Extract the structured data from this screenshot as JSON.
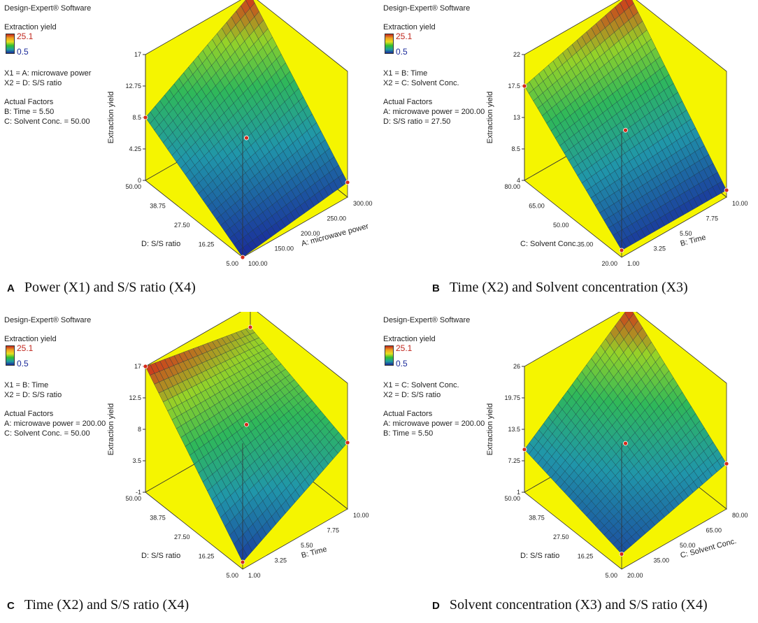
{
  "software_label": "Design-Expert® Software",
  "legend": {
    "title": "Extraction yield",
    "max": "25.1",
    "min": "0.5",
    "max_color": "#c0261d",
    "min_color": "#1a2a9a"
  },
  "colors": {
    "wall": "#f5f500",
    "surface_low": "#1a2a9a",
    "surface_mid": "#2fb86a",
    "surface_high": "#d42a1a"
  },
  "chart_data": [
    {
      "panel": "A",
      "type": "surface",
      "caption_letter": "A",
      "caption": "Power (X1) and S/S ratio (X4)",
      "x1": "X1 = A: microwave power",
      "x2": "X2 = D: S/S ratio",
      "actual_title": "Actual Factors",
      "actual": [
        "B: Time  = 5.50",
        "C: Solvent Conc. = 50.00"
      ],
      "zlabel": "Extraction yield",
      "zticks": [
        "17",
        "12.75",
        "8.5",
        "4.25",
        "0"
      ],
      "zlim": [
        0,
        17
      ],
      "xlabel": "A: microwave power",
      "xticks": [
        "100.00",
        "150.00",
        "200.00",
        "250.00",
        "300.00"
      ],
      "ylabel": "D: S/S ratio",
      "yticks": [
        "5.00",
        "16.25",
        "27.50",
        "38.75",
        "50.00"
      ],
      "corners": {
        "x_lo_y_lo": 0.0,
        "x_hi_y_lo": 2.0,
        "x_lo_y_hi": 8.5,
        "x_hi_y_hi": 17.0
      }
    },
    {
      "panel": "B",
      "type": "surface",
      "caption_letter": "B",
      "caption": "Time (X2) and Solvent concentration (X3)",
      "x1": "X1 = B: Time",
      "x2": "X2 = C: Solvent Conc.",
      "actual_title": "Actual Factors",
      "actual": [
        "A: microwave power = 200.00",
        "D: S/S ratio = 27.50"
      ],
      "zlabel": "Extraction yield",
      "zticks": [
        "22",
        "17.5",
        "13",
        "8.5",
        "4"
      ],
      "zlim": [
        4,
        22
      ],
      "xlabel": "B: Time",
      "xticks": [
        "1.00",
        "3.25",
        "5.50",
        "7.75",
        "10.00"
      ],
      "ylabel": "C: Solvent Conc.",
      "yticks": [
        "20.00",
        "35.00",
        "50.00",
        "65.00",
        "80.00"
      ],
      "corners": {
        "x_lo_y_lo": 5.0,
        "x_hi_y_lo": 5.0,
        "x_lo_y_hi": 17.5,
        "x_hi_y_hi": 22.0
      }
    },
    {
      "panel": "C",
      "type": "surface",
      "caption_letter": "C",
      "caption": "Time (X2) and S/S ratio (X4)",
      "x1": "X1 = B: Time",
      "x2": "X2 = D: S/S ratio",
      "actual_title": "Actual Factors",
      "actual": [
        "A: microwave power = 200.00",
        "C: Solvent Conc. = 50.00"
      ],
      "zlabel": "Extraction yield",
      "zticks": [
        "17",
        "12.5",
        "8",
        "3.5",
        "-1"
      ],
      "zlim": [
        -1,
        17
      ],
      "xlabel": "B: Time",
      "xticks": [
        "1.00",
        "3.25",
        "5.50",
        "7.75",
        "10.00"
      ],
      "ylabel": "D: S/S ratio",
      "yticks": [
        "5.00",
        "16.25",
        "27.50",
        "38.75",
        "50.00"
      ],
      "corners": {
        "x_lo_y_lo": 0.0,
        "x_hi_y_lo": 8.5,
        "x_lo_y_hi": 17.0,
        "x_hi_y_hi": 14.0
      }
    },
    {
      "panel": "D",
      "type": "surface",
      "caption_letter": "D",
      "caption": "Solvent concentration (X3) and S/S ratio (X4)",
      "x1": "X1 = C: Solvent Conc.",
      "x2": "X2 = D: S/S ratio",
      "actual_title": "Actual Factors",
      "actual": [
        "A: microwave power = 200.00",
        "B: Time  = 5.50"
      ],
      "zlabel": "Extraction yield",
      "zticks": [
        "26",
        "19.75",
        "13.5",
        "7.25",
        "1"
      ],
      "zlim": [
        1,
        26
      ],
      "xlabel": "C: Solvent Conc.",
      "xticks": [
        "20.00",
        "35.00",
        "50.00",
        "65.00",
        "80.00"
      ],
      "ylabel": "D: S/S ratio",
      "yticks": [
        "5.00",
        "16.25",
        "27.50",
        "38.75",
        "50.00"
      ],
      "corners": {
        "x_lo_y_lo": 4.0,
        "x_hi_y_lo": 10.0,
        "x_lo_y_hi": 9.5,
        "x_hi_y_hi": 26.0
      }
    }
  ]
}
